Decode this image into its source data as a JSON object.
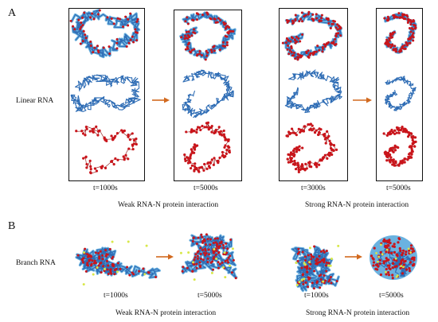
{
  "panels": [
    {
      "letter": "A",
      "row_label": "Linear RNA",
      "groups": [
        {
          "caption": "Weak RNA-N protein interaction",
          "times": [
            "t=1000s",
            "t=5000s"
          ]
        },
        {
          "caption": "Strong RNA-N protein interaction",
          "times": [
            "t=3000s",
            "t=5000s"
          ]
        }
      ]
    },
    {
      "letter": "B",
      "row_label": "Branch RNA",
      "groups": [
        {
          "caption": "Weak RNA-N protein interaction",
          "times": [
            "t=1000s",
            "t=5000s"
          ]
        },
        {
          "caption": "Strong RNA-N protein interaction",
          "times": [
            "t=1000s",
            "t=5000s"
          ]
        }
      ]
    }
  ],
  "colors": {
    "rna_chain": "#2f6db5",
    "protein": "#c9151b",
    "complex_outline": "#6ab2e0",
    "branch_tip": "#d8e84a",
    "arrow": "#d2691e"
  }
}
